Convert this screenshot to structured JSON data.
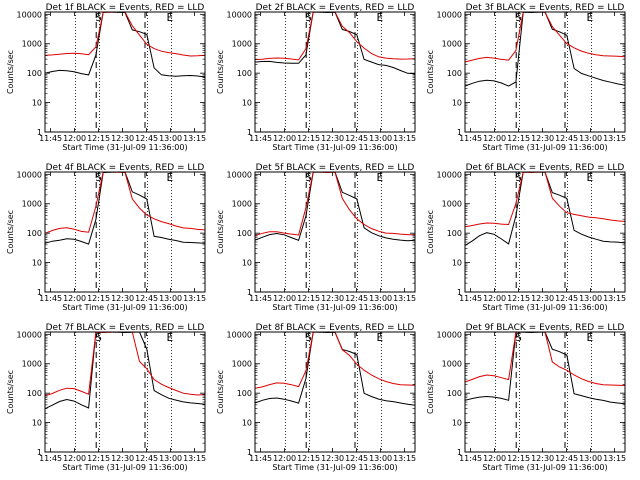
{
  "chart_data": [
    {
      "type": "line",
      "title": "Det 1f BLACK = Events, RED = LLD",
      "xlabel": "Start Time (31-Jul-09 11:36:00)",
      "ylabel": "Counts/sec",
      "series": [
        {
          "color": "#000000",
          "values": [
            100,
            110,
            120,
            120,
            115,
            100,
            88,
            400,
            12000,
            12000,
            12000,
            12000,
            3000,
            2500,
            2000,
            150,
            90,
            85,
            80,
            80,
            80,
            78,
            75
          ]
        },
        {
          "color": "#dd0000",
          "values": [
            400,
            430,
            460,
            470,
            460,
            440,
            420,
            800,
            12000,
            12000,
            12000,
            12000,
            4000,
            2000,
            1000,
            700,
            550,
            480,
            450,
            420,
            400,
            400,
            400
          ]
        }
      ]
    },
    {
      "type": "line",
      "title": "Det 2f BLACK = Events, RED = LLD",
      "xlabel": "Start Time (31-Jul-09 11:36:00)",
      "ylabel": "Counts/sec",
      "series": [
        {
          "color": "#000000",
          "values": [
            230,
            240,
            250,
            240,
            230,
            220,
            210,
            400,
            12000,
            12000,
            12000,
            12000,
            3000,
            2500,
            2000,
            300,
            250,
            200,
            180,
            150,
            120,
            100,
            100
          ]
        },
        {
          "color": "#dd0000",
          "values": [
            300,
            310,
            320,
            320,
            310,
            300,
            290,
            700,
            12000,
            12000,
            12000,
            12000,
            4000,
            2500,
            1200,
            700,
            450,
            350,
            330,
            320,
            310,
            300,
            300
          ]
        }
      ]
    },
    {
      "type": "line",
      "title": "Det 3f BLACK = Events, RED = LLD",
      "xlabel": "Start Time (31-Jul-09 11:36:00)",
      "ylabel": "Counts/sec",
      "series": [
        {
          "color": "#000000",
          "values": [
            35,
            45,
            55,
            60,
            55,
            45,
            35,
            50,
            12000,
            12000,
            12000,
            12000,
            3000,
            2500,
            2000,
            150,
            100,
            80,
            65,
            55,
            50,
            45,
            40
          ]
        },
        {
          "color": "#dd0000",
          "values": [
            250,
            280,
            310,
            330,
            320,
            300,
            290,
            600,
            12000,
            12000,
            12000,
            12000,
            4000,
            2000,
            1000,
            700,
            550,
            480,
            440,
            400,
            380,
            360,
            350
          ]
        }
      ]
    },
    {
      "type": "line",
      "title": "Det 4f BLACK = Events, RED = LLD",
      "xlabel": "Start Time (31-Jul-09 11:36:00)",
      "ylabel": "Counts/sec",
      "series": [
        {
          "color": "#000000",
          "values": [
            45,
            55,
            60,
            65,
            60,
            50,
            42,
            300,
            12000,
            12000,
            12000,
            12000,
            2500,
            2000,
            1500,
            80,
            70,
            60,
            55,
            50,
            50,
            48,
            45
          ]
        },
        {
          "color": "#dd0000",
          "values": [
            100,
            120,
            140,
            150,
            140,
            120,
            110,
            800,
            12000,
            12000,
            12000,
            12000,
            1500,
            700,
            400,
            300,
            250,
            220,
            180,
            150,
            140,
            130,
            130
          ]
        }
      ]
    },
    {
      "type": "line",
      "title": "Det 5f BLACK = Events, RED = LLD",
      "xlabel": "Start Time (31-Jul-09 11:36:00)",
      "ylabel": "Counts/sec",
      "series": [
        {
          "color": "#000000",
          "values": [
            60,
            75,
            90,
            95,
            85,
            70,
            58,
            400,
            12000,
            12000,
            12000,
            12000,
            2500,
            2000,
            1500,
            150,
            100,
            80,
            70,
            65,
            60,
            55,
            55
          ]
        },
        {
          "color": "#dd0000",
          "values": [
            80,
            95,
            110,
            115,
            105,
            95,
            85,
            700,
            12000,
            12000,
            12000,
            12000,
            1500,
            600,
            300,
            200,
            150,
            120,
            100,
            95,
            90,
            90,
            90
          ]
        }
      ]
    },
    {
      "type": "line",
      "title": "Det 6f BLACK = Events, RED = LLD",
      "xlabel": "Start Time (31-Jul-09 11:36:00)",
      "ylabel": "Counts/sec",
      "series": [
        {
          "color": "#000000",
          "values": [
            40,
            55,
            80,
            100,
            90,
            65,
            45,
            400,
            12000,
            12000,
            12000,
            12000,
            2500,
            2000,
            1500,
            120,
            90,
            75,
            65,
            55,
            50,
            48,
            45
          ]
        },
        {
          "color": "#dd0000",
          "values": [
            160,
            180,
            210,
            230,
            220,
            200,
            190,
            1000,
            12000,
            12000,
            12000,
            12000,
            1500,
            800,
            500,
            450,
            400,
            350,
            320,
            300,
            280,
            270,
            260
          ]
        }
      ]
    },
    {
      "type": "line",
      "title": "Det 7f BLACK = Events, RED = LLD",
      "xlabel": "Start Time (31-Jul-09 11:36:00)",
      "ylabel": "Counts/sec",
      "series": [
        {
          "color": "#000000",
          "values": [
            30,
            38,
            50,
            60,
            55,
            42,
            32,
            12000,
            12000,
            12000,
            12000,
            12000,
            12000,
            12000,
            3000,
            120,
            90,
            70,
            60,
            50,
            45,
            43,
            42
          ]
        },
        {
          "color": "#dd0000",
          "values": [
            80,
            100,
            130,
            150,
            140,
            110,
            90,
            12000,
            12000,
            12000,
            12000,
            12000,
            12000,
            1200,
            700,
            300,
            200,
            150,
            120,
            100,
            95,
            90,
            90
          ]
        }
      ]
    },
    {
      "type": "line",
      "title": "Det 8f BLACK = Events, RED = LLD",
      "xlabel": "Start Time (31-Jul-09 11:36:00)",
      "ylabel": "Counts/sec",
      "series": [
        {
          "color": "#000000",
          "values": [
            45,
            55,
            65,
            70,
            65,
            55,
            45,
            300,
            12000,
            12000,
            12000,
            12000,
            3000,
            2500,
            2000,
            100,
            80,
            65,
            55,
            50,
            45,
            42,
            40
          ]
        },
        {
          "color": "#dd0000",
          "values": [
            150,
            170,
            200,
            220,
            210,
            190,
            170,
            600,
            12000,
            12000,
            12000,
            12000,
            3000,
            2000,
            1000,
            600,
            400,
            300,
            250,
            220,
            200,
            190,
            180
          ]
        }
      ]
    },
    {
      "type": "line",
      "title": "Det 9f BLACK = Events, RED = LLD",
      "xlabel": "Start Time (31-Jul-09 11:36:00)",
      "ylabel": "Counts/sec",
      "series": [
        {
          "color": "#000000",
          "values": [
            55,
            65,
            75,
            80,
            75,
            65,
            55,
            12000,
            12000,
            12000,
            12000,
            12000,
            3000,
            2500,
            2000,
            100,
            85,
            70,
            60,
            55,
            50,
            48,
            45
          ]
        },
        {
          "color": "#dd0000",
          "values": [
            250,
            300,
            360,
            400,
            380,
            340,
            300,
            12000,
            12000,
            12000,
            12000,
            12000,
            1200,
            800,
            600,
            400,
            300,
            250,
            220,
            200,
            190,
            180,
            175
          ]
        }
      ]
    }
  ],
  "shared": {
    "xticks": [
      "11:45",
      "12:00",
      "12:15",
      "12:30",
      "12:45",
      "13:00",
      "13:15"
    ],
    "yticks": [
      "1",
      "10",
      "100",
      "1000",
      "10000"
    ],
    "markers": {
      "s": "S",
      "e": "E"
    }
  }
}
